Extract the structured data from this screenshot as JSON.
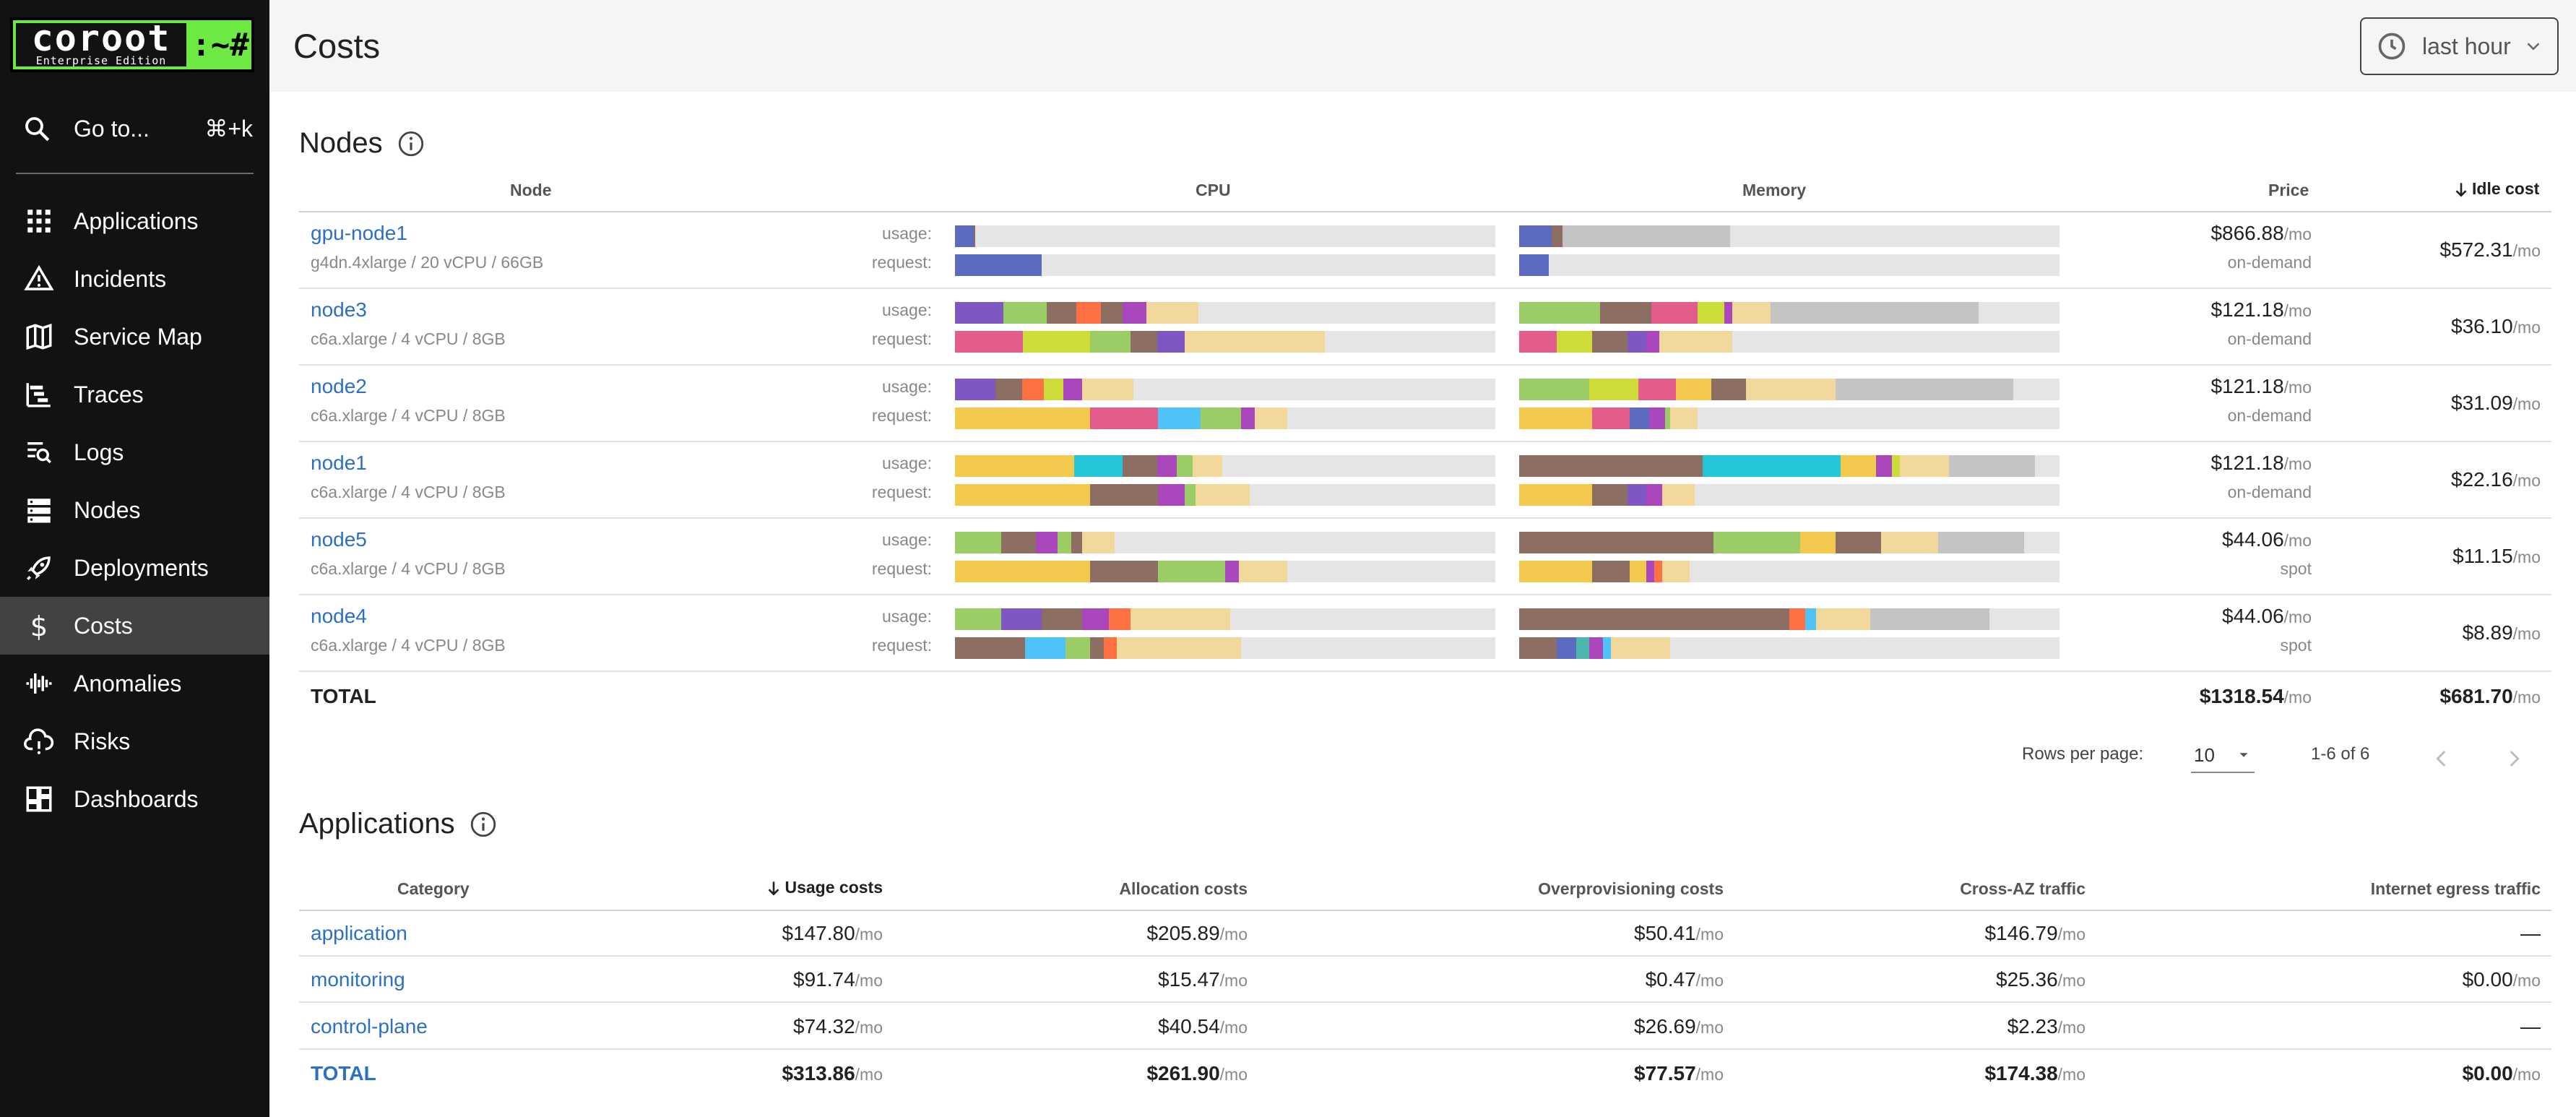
{
  "logo": {
    "name": "coroot",
    "edition": "Enterprise Edition",
    "prompt": ":~#"
  },
  "sidebar": {
    "goto": {
      "label": "Go to...",
      "shortcut": "⌘+k"
    },
    "items": [
      {
        "label": "Applications",
        "icon": "grid-icon"
      },
      {
        "label": "Incidents",
        "icon": "warning-icon"
      },
      {
        "label": "Service Map",
        "icon": "map-icon"
      },
      {
        "label": "Traces",
        "icon": "traces-icon"
      },
      {
        "label": "Logs",
        "icon": "logs-icon"
      },
      {
        "label": "Nodes",
        "icon": "server-icon"
      },
      {
        "label": "Deployments",
        "icon": "rocket-icon"
      },
      {
        "label": "Costs",
        "icon": "dollar-icon",
        "active": true
      },
      {
        "label": "Anomalies",
        "icon": "waveform-icon"
      },
      {
        "label": "Risks",
        "icon": "cloud-alert-icon"
      },
      {
        "label": "Dashboards",
        "icon": "dashboard-icon"
      }
    ]
  },
  "header": {
    "title": "Costs",
    "time_range": "last hour"
  },
  "nodes": {
    "title": "Nodes",
    "columns": {
      "node": "Node",
      "cpu": "CPU",
      "memory": "Memory",
      "price": "Price",
      "idle_cost": "Idle cost"
    },
    "usage_label": "usage:",
    "request_label": "request:",
    "unit": "/mo",
    "colors": [
      "#f2c94c",
      "#5c6bc0",
      "#8d6e63",
      "#9ccc65",
      "#e35d8c",
      "#4fc3f7",
      "#ab47bc",
      "#f2d99b",
      "#c4c4c4",
      "#ff7043",
      "#cddc39",
      "#7e57c2",
      "#26c6da",
      "#4db6ac",
      "#f48fb1"
    ],
    "rows": [
      {
        "name": "gpu-node1",
        "desc": "g4dn.4xlarge / 20 vCPU / 66GB",
        "price": "$866.88",
        "type": "on-demand",
        "idle": "$572.31",
        "cpu_usage": [
          [
            0.035,
            "#5c6bc0"
          ],
          [
            0.003,
            "#8d6e63"
          ]
        ],
        "cpu_request": [
          [
            0.16,
            "#5c6bc0"
          ]
        ],
        "mem_usage": [
          [
            0.06,
            "#5c6bc0"
          ],
          [
            0.02,
            "#8d6e63"
          ],
          [
            0.31,
            "#c4c4c4"
          ]
        ],
        "mem_request": [
          [
            0.055,
            "#5c6bc0"
          ]
        ]
      },
      {
        "name": "node3",
        "desc": "c6a.xlarge / 4 vCPU / 8GB",
        "price": "$121.18",
        "type": "on-demand",
        "idle": "$36.10",
        "cpu_usage": [
          [
            0.09,
            "#7e57c2"
          ],
          [
            0.08,
            "#9ccc65"
          ],
          [
            0.055,
            "#8d6e63"
          ],
          [
            0.045,
            "#ff7043"
          ],
          [
            0.04,
            "#8d6e63"
          ],
          [
            0.045,
            "#ab47bc"
          ],
          [
            0.095,
            "#f2d99b"
          ]
        ],
        "cpu_request": [
          [
            0.125,
            "#e35d8c"
          ],
          [
            0.125,
            "#cddc39"
          ],
          [
            0.075,
            "#9ccc65"
          ],
          [
            0.05,
            "#8d6e63"
          ],
          [
            0.05,
            "#7e57c2"
          ],
          [
            0.26,
            "#f2d99b"
          ]
        ],
        "mem_usage": [
          [
            0.15,
            "#9ccc65"
          ],
          [
            0.095,
            "#8d6e63"
          ],
          [
            0.085,
            "#e35d8c"
          ],
          [
            0.05,
            "#cddc39"
          ],
          [
            0.015,
            "#ab47bc"
          ],
          [
            0.07,
            "#f2d99b"
          ],
          [
            0.385,
            "#c4c4c4"
          ]
        ],
        "mem_request": [
          [
            0.07,
            "#e35d8c"
          ],
          [
            0.065,
            "#cddc39"
          ],
          [
            0.065,
            "#8d6e63"
          ],
          [
            0.035,
            "#7e57c2"
          ],
          [
            0.025,
            "#ab47bc"
          ],
          [
            0.135,
            "#f2d99b"
          ]
        ]
      },
      {
        "name": "node2",
        "desc": "c6a.xlarge / 4 vCPU / 8GB",
        "price": "$121.18",
        "type": "on-demand",
        "idle": "$31.09",
        "cpu_usage": [
          [
            0.075,
            "#7e57c2"
          ],
          [
            0.05,
            "#8d6e63"
          ],
          [
            0.04,
            "#ff7043"
          ],
          [
            0.035,
            "#cddc39"
          ],
          [
            0.035,
            "#ab47bc"
          ],
          [
            0.095,
            "#f2d99b"
          ]
        ],
        "cpu_request": [
          [
            0.25,
            "#f2c94c"
          ],
          [
            0.125,
            "#e35d8c"
          ],
          [
            0.08,
            "#4fc3f7"
          ],
          [
            0.075,
            "#9ccc65"
          ],
          [
            0.025,
            "#ab47bc"
          ],
          [
            0.06,
            "#f2d99b"
          ]
        ],
        "mem_usage": [
          [
            0.13,
            "#9ccc65"
          ],
          [
            0.09,
            "#cddc39"
          ],
          [
            0.07,
            "#e35d8c"
          ],
          [
            0.065,
            "#f2c94c"
          ],
          [
            0.065,
            "#8d6e63"
          ],
          [
            0.165,
            "#f2d99b"
          ],
          [
            0.33,
            "#c4c4c4"
          ]
        ],
        "mem_request": [
          [
            0.135,
            "#f2c94c"
          ],
          [
            0.07,
            "#e35d8c"
          ],
          [
            0.035,
            "#5c6bc0"
          ],
          [
            0.03,
            "#ab47bc"
          ],
          [
            0.01,
            "#9ccc65"
          ],
          [
            0.05,
            "#f2d99b"
          ]
        ]
      },
      {
        "name": "node1",
        "desc": "c6a.xlarge / 4 vCPU / 8GB",
        "price": "$121.18",
        "type": "on-demand",
        "idle": "$22.16",
        "cpu_usage": [
          [
            0.22,
            "#f2c94c"
          ],
          [
            0.09,
            "#26c6da"
          ],
          [
            0.065,
            "#8d6e63"
          ],
          [
            0.035,
            "#ab47bc"
          ],
          [
            0.03,
            "#9ccc65"
          ],
          [
            0.055,
            "#f2d99b"
          ]
        ],
        "cpu_request": [
          [
            0.25,
            "#f2c94c"
          ],
          [
            0.125,
            "#8d6e63"
          ],
          [
            0.05,
            "#ab47bc"
          ],
          [
            0.02,
            "#9ccc65"
          ],
          [
            0.1,
            "#f2d99b"
          ]
        ],
        "mem_usage": [
          [
            0.34,
            "#8d6e63"
          ],
          [
            0.255,
            "#26c6da"
          ],
          [
            0.065,
            "#f2c94c"
          ],
          [
            0.03,
            "#ab47bc"
          ],
          [
            0.015,
            "#cddc39"
          ],
          [
            0.09,
            "#f2d99b"
          ],
          [
            0.16,
            "#c4c4c4"
          ]
        ],
        "mem_request": [
          [
            0.135,
            "#f2c94c"
          ],
          [
            0.065,
            "#8d6e63"
          ],
          [
            0.035,
            "#7e57c2"
          ],
          [
            0.03,
            "#ab47bc"
          ],
          [
            0.06,
            "#f2d99b"
          ]
        ]
      },
      {
        "name": "node5",
        "desc": "c6a.xlarge / 4 vCPU / 8GB",
        "price": "$44.06",
        "type": "spot",
        "idle": "$11.15",
        "cpu_usage": [
          [
            0.085,
            "#9ccc65"
          ],
          [
            0.065,
            "#8d6e63"
          ],
          [
            0.04,
            "#ab47bc"
          ],
          [
            0.025,
            "#9ccc65"
          ],
          [
            0.02,
            "#8d6e63"
          ],
          [
            0.06,
            "#f2d99b"
          ]
        ],
        "cpu_request": [
          [
            0.25,
            "#f2c94c"
          ],
          [
            0.125,
            "#8d6e63"
          ],
          [
            0.125,
            "#9ccc65"
          ],
          [
            0.025,
            "#ab47bc"
          ],
          [
            0.09,
            "#f2d99b"
          ]
        ],
        "mem_usage": [
          [
            0.36,
            "#8d6e63"
          ],
          [
            0.16,
            "#9ccc65"
          ],
          [
            0.065,
            "#f2c94c"
          ],
          [
            0.085,
            "#8d6e63"
          ],
          [
            0.105,
            "#f2d99b"
          ],
          [
            0.16,
            "#c4c4c4"
          ]
        ],
        "mem_request": [
          [
            0.135,
            "#f2c94c"
          ],
          [
            0.07,
            "#8d6e63"
          ],
          [
            0.03,
            "#f2c94c"
          ],
          [
            0.015,
            "#ab47bc"
          ],
          [
            0.015,
            "#ff7043"
          ],
          [
            0.05,
            "#f2d99b"
          ]
        ]
      },
      {
        "name": "node4",
        "desc": "c6a.xlarge / 4 vCPU / 8GB",
        "price": "$44.06",
        "type": "spot",
        "idle": "$8.89",
        "cpu_usage": [
          [
            0.085,
            "#9ccc65"
          ],
          [
            0.075,
            "#7e57c2"
          ],
          [
            0.075,
            "#8d6e63"
          ],
          [
            0.05,
            "#ab47bc"
          ],
          [
            0.04,
            "#ff7043"
          ],
          [
            0.185,
            "#f2d99b"
          ]
        ],
        "cpu_request": [
          [
            0.13,
            "#8d6e63"
          ],
          [
            0.075,
            "#4fc3f7"
          ],
          [
            0.045,
            "#9ccc65"
          ],
          [
            0.025,
            "#8d6e63"
          ],
          [
            0.025,
            "#ff7043"
          ],
          [
            0.23,
            "#f2d99b"
          ]
        ],
        "mem_usage": [
          [
            0.5,
            "#8d6e63"
          ],
          [
            0.03,
            "#ff7043"
          ],
          [
            0.02,
            "#4fc3f7"
          ],
          [
            0.1,
            "#f2d99b"
          ],
          [
            0.22,
            "#c4c4c4"
          ]
        ],
        "mem_request": [
          [
            0.07,
            "#8d6e63"
          ],
          [
            0.035,
            "#5c6bc0"
          ],
          [
            0.025,
            "#4db6ac"
          ],
          [
            0.025,
            "#ab47bc"
          ],
          [
            0.015,
            "#4fc3f7"
          ],
          [
            0.11,
            "#f2d99b"
          ]
        ]
      }
    ],
    "total": {
      "label": "TOTAL",
      "price": "$1318.54",
      "idle": "$681.70"
    },
    "pagination": {
      "rows_per_page_label": "Rows per page:",
      "rows_per_page": "10",
      "range": "1-6 of 6"
    }
  },
  "applications": {
    "title": "Applications",
    "columns": [
      "Category",
      "Usage costs",
      "Allocation costs",
      "Overprovisioning costs",
      "Cross-AZ traffic",
      "Internet egress traffic"
    ],
    "unit": "/mo",
    "rows": [
      {
        "name": "application",
        "usage": "$147.80",
        "allocation": "$205.89",
        "overprov": "$50.41",
        "cross_az": "$146.79",
        "egress": "—"
      },
      {
        "name": "monitoring",
        "usage": "$91.74",
        "allocation": "$15.47",
        "overprov": "$0.47",
        "cross_az": "$25.36",
        "egress": "$0.00"
      },
      {
        "name": "control-plane",
        "usage": "$74.32",
        "allocation": "$40.54",
        "overprov": "$26.69",
        "cross_az": "$2.23",
        "egress": "—"
      }
    ],
    "total": {
      "name": "TOTAL",
      "usage": "$313.86",
      "allocation": "$261.90",
      "overprov": "$77.57",
      "cross_az": "$174.38",
      "egress": "$0.00"
    }
  }
}
